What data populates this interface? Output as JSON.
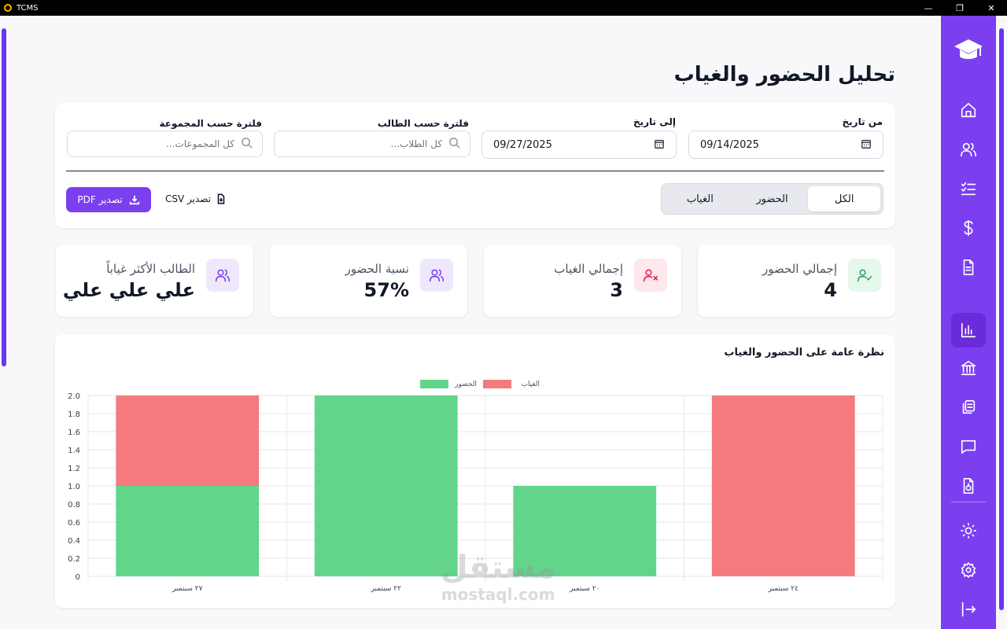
{
  "window": {
    "title": "TCMS",
    "controls": [
      "—",
      "❐",
      "✕"
    ]
  },
  "page": {
    "title": "تحليل الحضور والغياب"
  },
  "filters": {
    "from_label": "من تاريخ",
    "from_value": "09/14/2025",
    "to_label": "إلى تاريخ",
    "to_value": "09/27/2025",
    "student_label": "فلترة حسب الطالب",
    "student_placeholder": "كل الطلاب...",
    "group_label": "فلترة حسب المجموعة",
    "group_placeholder": "كل المجموعات..."
  },
  "segment": {
    "items": [
      "الكل",
      "الحضور",
      "الغياب"
    ],
    "active_index": 0
  },
  "export": {
    "csv_label": "تصدير CSV",
    "pdf_label": "تصدير PDF"
  },
  "stats": [
    {
      "label": "إجمالي الحضور",
      "value": "4",
      "icon": "user-check-icon",
      "color": "#22a45d",
      "bg": "#e6f7ec"
    },
    {
      "label": "إجمالي الغياب",
      "value": "3",
      "icon": "user-x-icon",
      "color": "#e11d48",
      "bg": "#fde8ec"
    },
    {
      "label": "نسبة الحضور",
      "value": "57%",
      "icon": "users-icon",
      "color": "#7b3ff0",
      "bg": "#efe8fd"
    },
    {
      "label": "الطالب الأكثر غياباً",
      "value": "علي علي علي",
      "icon": "users-icon",
      "color": "#7b3ff0",
      "bg": "#efe8fd"
    }
  ],
  "chart_data": {
    "type": "bar",
    "stacked": true,
    "title": "نظرة عامة على الحضور والغياب",
    "categories": [
      "٢٧ سبتمبر",
      "٢٢ سبتمبر",
      "٢٠ سبتمبر",
      "٢٤ سبتمبر"
    ],
    "series": [
      {
        "name": "الحضور",
        "values": [
          1,
          2,
          1,
          0
        ],
        "color": "#62d58a"
      },
      {
        "name": "الغياب",
        "values": [
          1,
          0,
          0,
          2
        ],
        "color": "#f47a7e"
      }
    ],
    "ylim": [
      0,
      2.0
    ],
    "yticks": [
      "0",
      "0.2",
      "0.4",
      "0.6",
      "0.8",
      "1.0",
      "1.2",
      "1.4",
      "1.6",
      "1.8",
      "2.0"
    ],
    "grid": true,
    "legend": "top-center"
  },
  "sidebar": {
    "items": [
      {
        "name": "nav-home",
        "icon": "home-icon"
      },
      {
        "name": "nav-students",
        "icon": "users-icon"
      },
      {
        "name": "nav-attendance",
        "icon": "list-check-icon"
      },
      {
        "name": "nav-payments",
        "icon": "dollar-icon"
      },
      {
        "name": "nav-reports",
        "icon": "file-text-icon"
      },
      {
        "name": "nav-analytics",
        "icon": "bar-chart-icon",
        "active": true
      },
      {
        "name": "nav-institution",
        "icon": "bank-icon"
      },
      {
        "name": "nav-courses",
        "icon": "copy-icon"
      },
      {
        "name": "nav-messages",
        "icon": "message-icon"
      },
      {
        "name": "nav-export",
        "icon": "file-export-icon"
      },
      {
        "name": "nav-theme",
        "icon": "sun-icon"
      },
      {
        "name": "nav-settings",
        "icon": "gear-icon"
      },
      {
        "name": "nav-logout",
        "icon": "logout-icon"
      }
    ]
  },
  "watermark": {
    "arabic": "مستقل",
    "latin": "mostaql.com"
  }
}
